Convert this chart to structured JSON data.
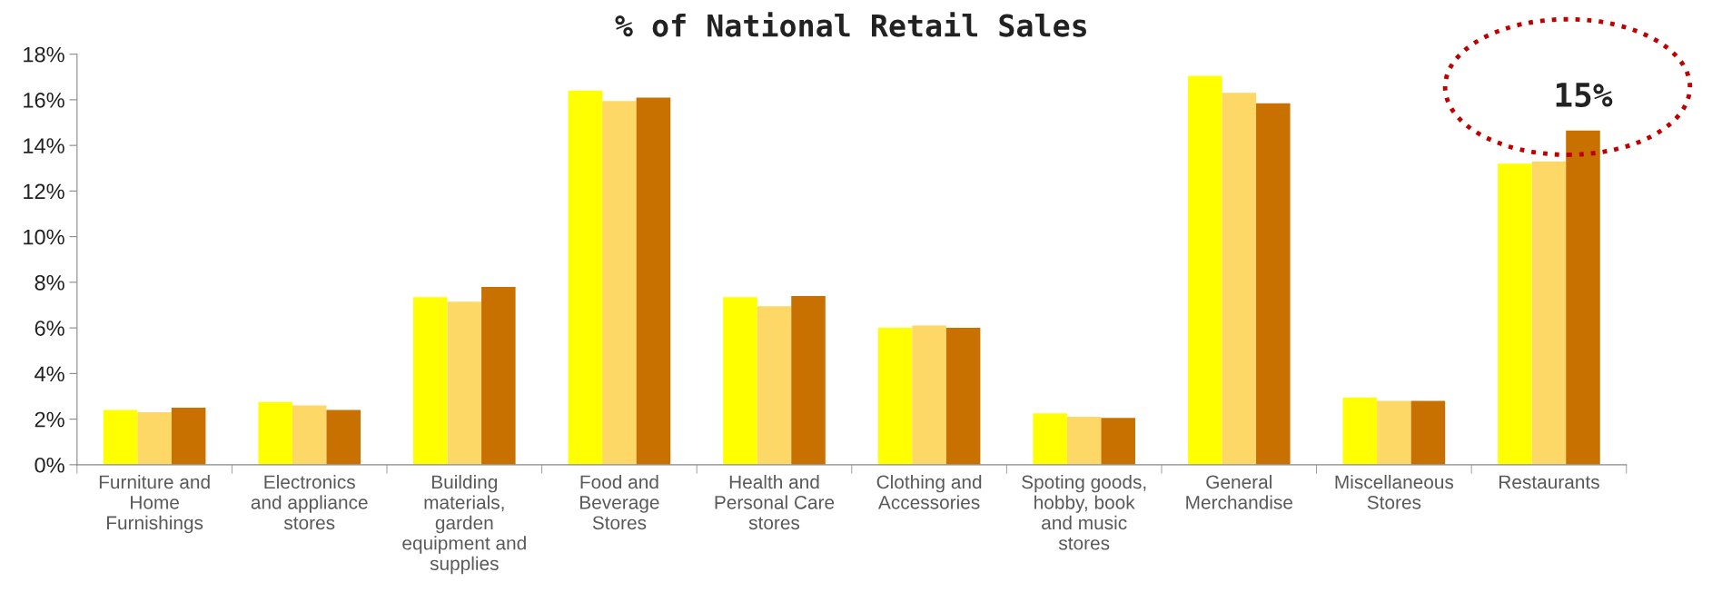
{
  "chart_data": {
    "type": "bar",
    "title": "% of National Retail Sales",
    "categories": [
      "Furniture and\nHome\nFurnishings",
      "Electronics\nand appliance\nstores",
      "Building\nmaterials,\ngarden\nequipment and\nsupplies",
      "Food and\nBeverage\nStores",
      "Health and\nPersonal Care\nstores",
      "Clothing and\nAccessories",
      "Spoting goods,\nhobby, book\nand music\nstores",
      "General\nMerchandise",
      "Miscellaneous\nStores",
      "Restaurants"
    ],
    "series": [
      {
        "color": "#ffff00",
        "values": [
          2.4,
          2.75,
          7.35,
          16.4,
          7.35,
          6.0,
          2.25,
          17.05,
          2.95,
          13.2
        ]
      },
      {
        "color": "#fdd866",
        "values": [
          2.3,
          2.6,
          7.15,
          15.95,
          6.95,
          6.1,
          2.1,
          16.3,
          2.8,
          13.3
        ]
      },
      {
        "color": "#c87000",
        "values": [
          2.5,
          2.4,
          7.8,
          16.1,
          7.4,
          6.0,
          2.05,
          15.85,
          2.8,
          14.65
        ]
      }
    ],
    "ylim": [
      0,
      18
    ],
    "yticks": [
      {
        "value": 0,
        "label": "0%"
      },
      {
        "value": 2,
        "label": "2%"
      },
      {
        "value": 4,
        "label": "4%"
      },
      {
        "value": 6,
        "label": "6%"
      },
      {
        "value": 8,
        "label": "8%"
      },
      {
        "value": 10,
        "label": "10%"
      },
      {
        "value": 12,
        "label": "12%"
      },
      {
        "value": 14,
        "label": "14%"
      },
      {
        "value": 16,
        "label": "16%"
      },
      {
        "value": 18,
        "label": "18%"
      }
    ],
    "annotations": [
      "15%"
    ],
    "grid": false,
    "legend": false
  }
}
